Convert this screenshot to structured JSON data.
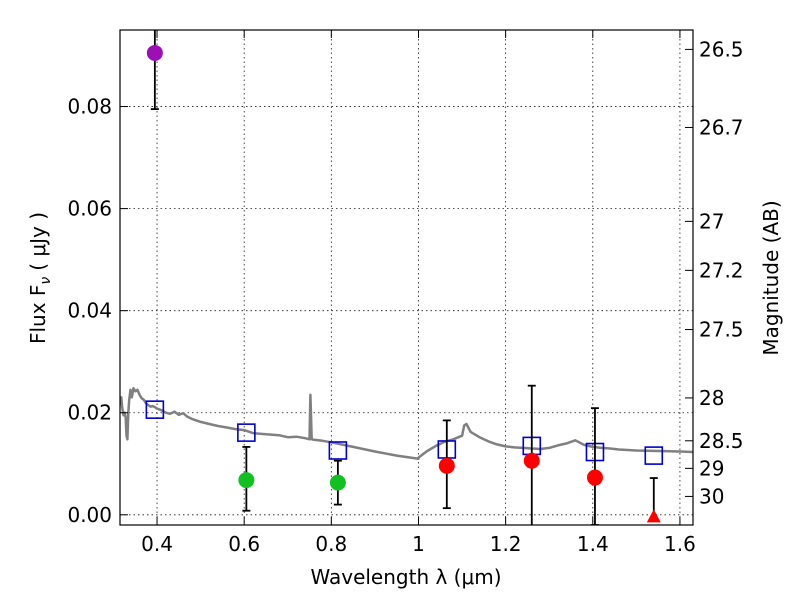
{
  "chart_data": {
    "type": "scatter",
    "xlabel": "Wavelength  λ (μm)",
    "ylabel": "Flux  F",
    "ylabel_sub": "ν",
    "ylabel_unit": "( μJy )",
    "y2label": "Magnitude (AB)",
    "xlim": [
      0.315,
      1.63
    ],
    "ylim": [
      -0.002,
      0.095
    ],
    "x_ticks": [
      0.4,
      0.6,
      0.8,
      1.0,
      1.2,
      1.4,
      1.6
    ],
    "x_tick_labels": [
      "0.4",
      "0.6",
      "0.8",
      "1",
      "1.2",
      "1.4",
      "1.6"
    ],
    "y_ticks": [
      0.0,
      0.02,
      0.04,
      0.06,
      0.08
    ],
    "y_tick_labels": [
      "0.00",
      "0.02",
      "0.04",
      "0.06",
      "0.08"
    ],
    "magnitude_ticks": [
      {
        "label": "26.5",
        "flux": 0.0912
      },
      {
        "label": "26.7",
        "flux": 0.0759
      },
      {
        "label": "27",
        "flux": 0.0575
      },
      {
        "label": "27.2",
        "flux": 0.0479
      },
      {
        "label": "27.5",
        "flux": 0.0363
      },
      {
        "label": "28",
        "flux": 0.0229
      },
      {
        "label": "28.5",
        "flux": 0.0145
      },
      {
        "label": "29",
        "flux": 0.0091
      },
      {
        "label": "30",
        "flux": 0.0036
      }
    ],
    "grid": true,
    "series": [
      {
        "marker": "circle",
        "color": "#9b0fb4",
        "points": [
          {
            "x": 0.395,
            "y": 0.0905,
            "err_low": 0.011,
            "err_high": 0.011
          }
        ]
      },
      {
        "marker": "circle",
        "color": "#11c021",
        "points": [
          {
            "x": 0.605,
            "y": 0.0068,
            "err_low": 0.006,
            "err_high": 0.0065
          },
          {
            "x": 0.815,
            "y": 0.0063,
            "err_low": 0.0043,
            "err_high": 0.0043
          }
        ]
      },
      {
        "marker": "circle",
        "color": "#ff0000",
        "points": [
          {
            "x": 1.065,
            "y": 0.0096,
            "err_low": 0.0083,
            "err_high": 0.0089
          },
          {
            "x": 1.26,
            "y": 0.0106,
            "err_low": 0.0127,
            "err_high": 0.0147
          },
          {
            "x": 1.405,
            "y": 0.0073,
            "err_low": 0.0093,
            "err_high": 0.0136
          }
        ]
      },
      {
        "marker": "triangle",
        "color": "#ff0000",
        "points": [
          {
            "x": 1.54,
            "y": -0.0003,
            "err_low": 0.0,
            "err_high": 0.0075
          }
        ]
      },
      {
        "marker": "open-square",
        "color": "#0000d0",
        "points": [
          {
            "x": 0.395,
            "y": 0.0206
          },
          {
            "x": 0.605,
            "y": 0.0161
          },
          {
            "x": 0.815,
            "y": 0.0126
          },
          {
            "x": 1.065,
            "y": 0.0128
          },
          {
            "x": 1.26,
            "y": 0.0135
          },
          {
            "x": 1.405,
            "y": 0.0123
          },
          {
            "x": 1.54,
            "y": 0.0116
          }
        ]
      },
      {
        "marker": "line",
        "color": "#808080",
        "x": [
          0.315,
          0.318,
          0.32,
          0.323,
          0.326,
          0.328,
          0.33,
          0.332,
          0.334,
          0.336,
          0.339,
          0.342,
          0.346,
          0.35,
          0.355,
          0.36,
          0.365,
          0.37,
          0.375,
          0.38,
          0.385,
          0.39,
          0.395,
          0.4,
          0.41,
          0.42,
          0.43,
          0.44,
          0.45,
          0.46,
          0.47,
          0.48,
          0.49,
          0.5,
          0.52,
          0.54,
          0.56,
          0.58,
          0.6,
          0.62,
          0.65,
          0.68,
          0.7,
          0.72,
          0.74,
          0.75,
          0.752,
          0.755,
          0.76,
          0.78,
          0.8,
          0.85,
          0.9,
          0.95,
          1.0,
          1.0,
          1.02,
          1.04,
          1.06,
          1.08,
          1.1,
          1.105,
          1.11,
          1.12,
          1.14,
          1.16,
          1.18,
          1.2,
          1.22,
          1.24,
          1.26,
          1.28,
          1.3,
          1.32,
          1.34,
          1.36,
          1.38,
          1.4,
          1.42,
          1.44,
          1.46,
          1.5,
          1.55,
          1.6,
          1.63
        ],
        "y": [
          0.0215,
          0.023,
          0.021,
          0.0195,
          0.02,
          0.019,
          0.0155,
          0.0148,
          0.02,
          0.0225,
          0.0245,
          0.023,
          0.0248,
          0.0242,
          0.0245,
          0.0235,
          0.0228,
          0.0225,
          0.0218,
          0.0215,
          0.0212,
          0.0213,
          0.0211,
          0.0208,
          0.0205,
          0.02,
          0.0198,
          0.0202,
          0.0196,
          0.0199,
          0.0192,
          0.0188,
          0.0185,
          0.0182,
          0.0178,
          0.0174,
          0.0171,
          0.0168,
          0.0166,
          0.016,
          0.0158,
          0.0156,
          0.0152,
          0.0153,
          0.015,
          0.0148,
          0.0235,
          0.0148,
          0.0147,
          0.0145,
          0.0142,
          0.0133,
          0.0124,
          0.0116,
          0.011,
          0.0112,
          0.0125,
          0.0135,
          0.0143,
          0.0148,
          0.0155,
          0.0175,
          0.0178,
          0.0162,
          0.0152,
          0.0144,
          0.0138,
          0.0134,
          0.0132,
          0.0131,
          0.013,
          0.0129,
          0.0131,
          0.0136,
          0.014,
          0.0146,
          0.0137,
          0.0133,
          0.0131,
          0.013,
          0.0128,
          0.0126,
          0.0125,
          0.0124,
          0.0123
        ]
      }
    ]
  }
}
